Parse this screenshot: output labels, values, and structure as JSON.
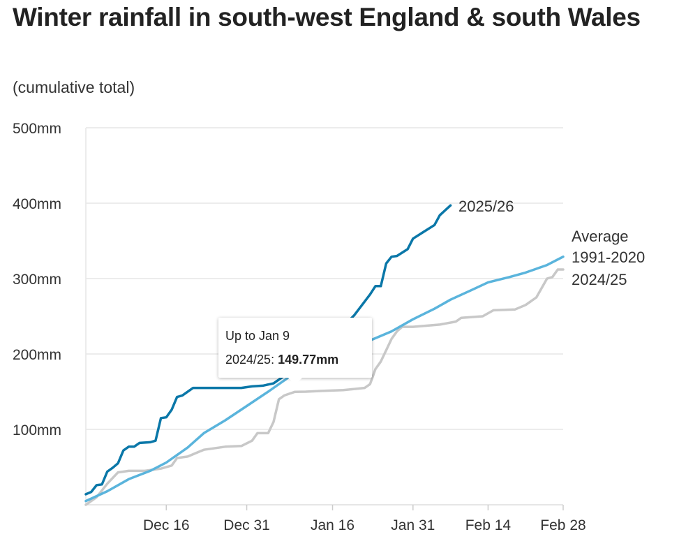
{
  "chart_data": {
    "type": "line",
    "title": "Winter rainfall in south-west England & south Wales",
    "subtitle": "(cumulative total)",
    "xlabel": "",
    "ylabel": "",
    "x_start_date": "Dec 1",
    "x_ticks": [
      {
        "day": 15,
        "label": "Dec 16"
      },
      {
        "day": 30,
        "label": "Dec 31"
      },
      {
        "day": 46,
        "label": "Jan 16"
      },
      {
        "day": 61,
        "label": "Jan 31"
      },
      {
        "day": 75,
        "label": "Feb 14"
      },
      {
        "day": 89,
        "label": "Feb 28"
      }
    ],
    "xlim_days": [
      0,
      89
    ],
    "ylim": [
      0,
      500
    ],
    "y_ticks": [
      {
        "v": 100,
        "label": "100mm"
      },
      {
        "v": 200,
        "label": "200mm"
      },
      {
        "v": 300,
        "label": "300mm"
      },
      {
        "v": 400,
        "label": "400mm"
      },
      {
        "v": 500,
        "label": "500mm"
      }
    ],
    "grid": true,
    "series": [
      {
        "name": "2024/25",
        "color": "#c8c8c8",
        "label_lines": [
          "2024/25"
        ],
        "points": [
          [
            0,
            0
          ],
          [
            2,
            10
          ],
          [
            4,
            28
          ],
          [
            6,
            43
          ],
          [
            8,
            45
          ],
          [
            11,
            45
          ],
          [
            14,
            48
          ],
          [
            16,
            52
          ],
          [
            17,
            62
          ],
          [
            19,
            64
          ],
          [
            21,
            70
          ],
          [
            22,
            73
          ],
          [
            26,
            77
          ],
          [
            29,
            78
          ],
          [
            31,
            85
          ],
          [
            32,
            95
          ],
          [
            34,
            95
          ],
          [
            35,
            110
          ],
          [
            36,
            140
          ],
          [
            37,
            145
          ],
          [
            39,
            149.77
          ],
          [
            41,
            150
          ],
          [
            44,
            151
          ],
          [
            48,
            152
          ],
          [
            52,
            155
          ],
          [
            53,
            160
          ],
          [
            54,
            180
          ],
          [
            55,
            190
          ],
          [
            56,
            205
          ],
          [
            57,
            220
          ],
          [
            58,
            230
          ],
          [
            59,
            236
          ],
          [
            61,
            236
          ],
          [
            66,
            239
          ],
          [
            69,
            243
          ],
          [
            70,
            248
          ],
          [
            74,
            250
          ],
          [
            76,
            258
          ],
          [
            80,
            259
          ],
          [
            82,
            265
          ],
          [
            84,
            275
          ],
          [
            86,
            300
          ],
          [
            87,
            302
          ],
          [
            88,
            312
          ],
          [
            89,
            312
          ]
        ]
      },
      {
        "name": "Average 1991-2020",
        "color": "#5ab4dc",
        "label_lines": [
          "Average",
          "1991-2020"
        ],
        "points": [
          [
            0,
            5
          ],
          [
            4,
            18
          ],
          [
            8,
            34
          ],
          [
            12,
            45
          ],
          [
            15,
            56
          ],
          [
            19,
            76
          ],
          [
            22,
            95
          ],
          [
            26,
            112
          ],
          [
            30,
            131
          ],
          [
            34,
            150
          ],
          [
            38,
            170
          ],
          [
            42,
            190
          ],
          [
            46,
            205
          ],
          [
            50,
            210
          ],
          [
            53,
            218
          ],
          [
            57,
            230
          ],
          [
            61,
            246
          ],
          [
            65,
            260
          ],
          [
            68,
            272
          ],
          [
            72,
            285
          ],
          [
            75,
            295
          ],
          [
            79,
            302
          ],
          [
            82,
            308
          ],
          [
            86,
            318
          ],
          [
            89,
            329
          ]
        ]
      },
      {
        "name": "2025/26",
        "color": "#0a77a8",
        "label_lines": [
          "2025/26"
        ],
        "points": [
          [
            0,
            14
          ],
          [
            1,
            17
          ],
          [
            2,
            26
          ],
          [
            3,
            27
          ],
          [
            4,
            44
          ],
          [
            5,
            49
          ],
          [
            6,
            55
          ],
          [
            7,
            72
          ],
          [
            8,
            77
          ],
          [
            9,
            77
          ],
          [
            10,
            82
          ],
          [
            12,
            83
          ],
          [
            13,
            85
          ],
          [
            14,
            115
          ],
          [
            15,
            116
          ],
          [
            16,
            126
          ],
          [
            17,
            143
          ],
          [
            18,
            145
          ],
          [
            20,
            155
          ],
          [
            29,
            155
          ],
          [
            31,
            157
          ],
          [
            33,
            158
          ],
          [
            35,
            161
          ],
          [
            36,
            166
          ],
          [
            40,
            185
          ],
          [
            45,
            215
          ],
          [
            50,
            251
          ],
          [
            53,
            279
          ],
          [
            54,
            290
          ],
          [
            55,
            290
          ],
          [
            56,
            320
          ],
          [
            57,
            329
          ],
          [
            58,
            330
          ],
          [
            60,
            339
          ],
          [
            61,
            353
          ],
          [
            63,
            362
          ],
          [
            65,
            371
          ],
          [
            66,
            384
          ],
          [
            68,
            397
          ]
        ]
      }
    ],
    "tooltip": {
      "title": "Up to Jan 9",
      "series_label": "2024/25: ",
      "value": "149.77mm"
    }
  }
}
